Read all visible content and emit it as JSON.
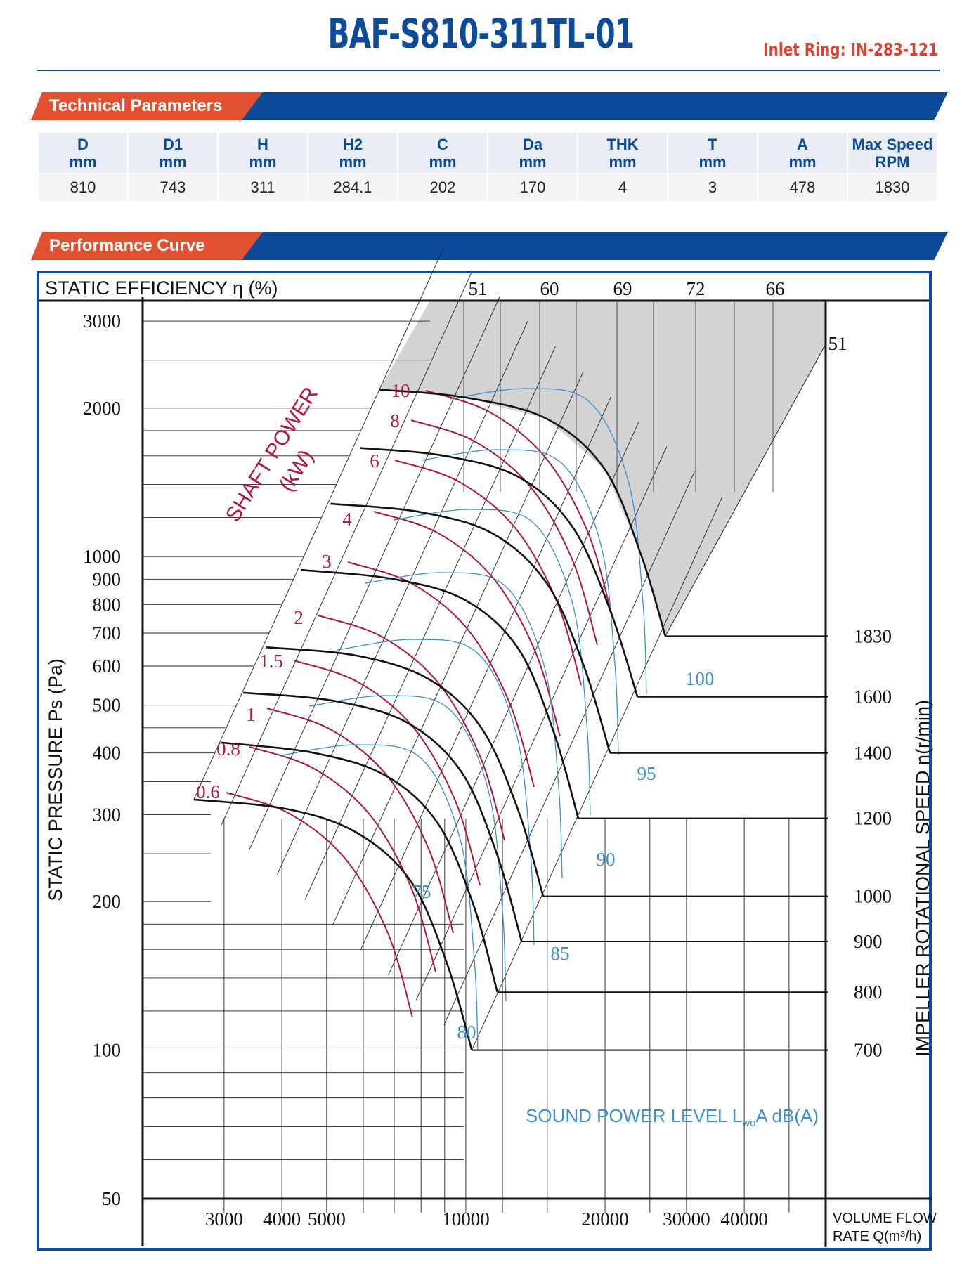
{
  "header": {
    "model": "BAF-S810-311TL-01",
    "inlet_ring": "Inlet Ring: IN-283-121"
  },
  "sections": {
    "technical": "Technical Parameters",
    "performance": "Performance Curve"
  },
  "parameters": {
    "headers": [
      {
        "name": "D",
        "unit": "mm"
      },
      {
        "name": "D1",
        "unit": "mm"
      },
      {
        "name": "H",
        "unit": "mm"
      },
      {
        "name": "H2",
        "unit": "mm"
      },
      {
        "name": "C",
        "unit": "mm"
      },
      {
        "name": "Da",
        "unit": "mm"
      },
      {
        "name": "THK",
        "unit": "mm"
      },
      {
        "name": "T",
        "unit": "mm"
      },
      {
        "name": "A",
        "unit": "mm"
      },
      {
        "name": "Max Speed",
        "unit": "RPM"
      }
    ],
    "values": [
      "810",
      "743",
      "311",
      "284.1",
      "202",
      "170",
      "4",
      "3",
      "478",
      "1830"
    ]
  },
  "colors": {
    "brand_blue": "#0d4a9a",
    "accent_orange": "#e1502f",
    "power_curve": "#b0173a",
    "sound_curve": "#3a8fd6",
    "speed_curve": "#111111",
    "shade": "#d3d3d3"
  },
  "chart_data": {
    "type": "line",
    "title": "",
    "xlabel_lines": [
      "VOLUME FLOW",
      "RATE  Q(m³/h)"
    ],
    "ylabel": "STATIC PRESSURE Ps (Pa)",
    "right_label": "IMPELLER ROTATIONAL SPEED n(r/min)",
    "top_label": "STATIC EFFICIENCY η (%)",
    "power_label": [
      "SHAFT POWER",
      "(kW)"
    ],
    "sound_label_main": "SOUND POWER LEVEL L",
    "sound_label_sub": "wo",
    "sound_label_end": "A dB(A)",
    "x_scale": "log",
    "y_scale": "log",
    "xlim": [
      2000,
      60000
    ],
    "ylim": [
      50,
      3300
    ],
    "x_ticks": [
      "3000",
      "4000",
      "5000",
      "10000",
      "20000",
      "30000",
      "40000"
    ],
    "y_ticks": [
      "3000",
      "2000",
      "1000",
      "900",
      "800",
      "700",
      "600",
      "500",
      "400",
      "300",
      "200",
      "100",
      "50"
    ],
    "efficiency_labels": [
      "51",
      "60",
      "69",
      "72",
      "66",
      "51"
    ],
    "speeds": [
      "1830",
      "1600",
      "1400",
      "1200",
      "1000",
      "900",
      "800",
      "700"
    ],
    "shaft_power_labels": [
      "10",
      "8",
      "6",
      "4",
      "3",
      "2",
      "1.5",
      "1",
      "0.8",
      "0.6"
    ],
    "sound_labels": [
      "100",
      "95",
      "90",
      "85",
      "80",
      "75"
    ],
    "series": [
      {
        "name": "1830",
        "x": [
          6500,
          10000,
          15000,
          20000,
          24000,
          27000
        ],
        "y": [
          2180,
          2100,
          1900,
          1500,
          1000,
          690
        ]
      },
      {
        "name": "1600",
        "x": [
          5900,
          9000,
          13000,
          17000,
          20500,
          23500
        ],
        "y": [
          1660,
          1600,
          1450,
          1150,
          780,
          520
        ]
      },
      {
        "name": "1400",
        "x": [
          5100,
          8000,
          11500,
          15000,
          18000,
          20500
        ],
        "y": [
          1280,
          1230,
          1110,
          880,
          600,
          400
        ]
      },
      {
        "name": "1200",
        "x": [
          4400,
          7000,
          10000,
          13000,
          15500,
          17500
        ],
        "y": [
          940,
          900,
          815,
          650,
          440,
          295
        ]
      },
      {
        "name": "1000",
        "x": [
          3700,
          5800,
          8300,
          10800,
          13000,
          14700
        ],
        "y": [
          655,
          630,
          565,
          450,
          305,
          205
        ]
      },
      {
        "name": "900",
        "x": [
          3300,
          5200,
          7500,
          9800,
          11700,
          13200
        ],
        "y": [
          530,
          510,
          460,
          365,
          248,
          166
        ]
      },
      {
        "name": "800",
        "x": [
          2950,
          4700,
          6700,
          8700,
          10400,
          11700
        ],
        "y": [
          420,
          400,
          360,
          288,
          196,
          131
        ]
      },
      {
        "name": "700",
        "x": [
          2580,
          4100,
          5800,
          7600,
          9100,
          10300
        ],
        "y": [
          322,
          308,
          276,
          220,
          150,
          100
        ]
      }
    ]
  }
}
